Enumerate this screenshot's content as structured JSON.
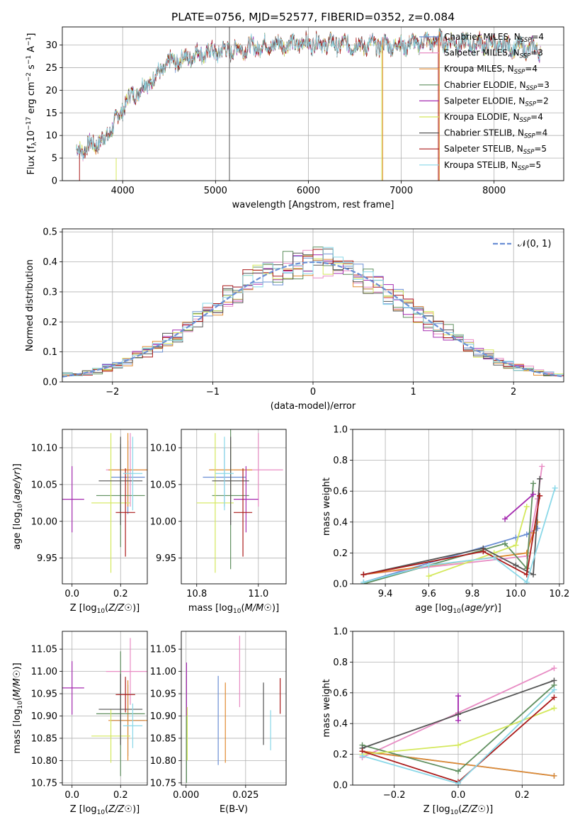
{
  "colors": {
    "Chabrier MILES": "#6b8fd4",
    "Salpeter MILES": "#e88cc4",
    "Kroupa MILES": "#e08a30",
    "Chabrier ELODIE": "#5f8f5f",
    "Salpeter ELODIE": "#a52bb0",
    "Kroupa ELODIE": "#d4e85c",
    "Chabrier STELIB": "#555555",
    "Salpeter STELIB": "#aa1a1a",
    "Kroupa STELIB": "#8ad8e8",
    "normal": "#6b8fd4"
  },
  "chart_data": [
    {
      "id": "spectrum",
      "type": "line",
      "title": "PLATE=0756, MJD=52577, FIBERID=0352, z=0.084",
      "xlabel": "wavelength [Angstrom, rest frame]",
      "ylabel_html": "Flux [f<tspan font-size='9' dy='3'>λ</tspan><tspan dy='-3'>10</tspan><tspan font-size='9' dy='-5'>−17</tspan><tspan dy='5'> erg cm</tspan><tspan font-size='9' dy='-5'>−2</tspan><tspan dy='5'> s</tspan><tspan font-size='9' dy='-5'>−1</tspan><tspan dy='5'> A</tspan><tspan font-size='9' dy='-5'>−1</tspan><tspan dy='5'>]</tspan>",
      "xlim": [
        3350,
        8750
      ],
      "ylim": [
        0,
        34
      ],
      "xticks": [
        4000,
        5000,
        6000,
        7000,
        8000
      ],
      "yticks": [
        0,
        5,
        10,
        15,
        20,
        25,
        30
      ],
      "legend_position": "top-right",
      "series": [
        {
          "name": "Chabrier MILES",
          "label": "Chabrier MILES, N_SSP=4"
        },
        {
          "name": "Salpeter MILES",
          "label": "Salpeter MILES, N_SSP=3"
        },
        {
          "name": "Kroupa MILES",
          "label": "Kroupa MILES, N_SSP=4"
        },
        {
          "name": "Chabrier ELODIE",
          "label": "Chabrier ELODIE, N_SSP=3"
        },
        {
          "name": "Salpeter ELODIE",
          "label": "Salpeter ELODIE, N_SSP=2"
        },
        {
          "name": "Kroupa ELODIE",
          "label": "Kroupa ELODIE, N_SSP=4"
        },
        {
          "name": "Chabrier STELIB",
          "label": "Chabrier STELIB, N_SSP=4"
        },
        {
          "name": "Salpeter STELIB",
          "label": "Salpeter STELIB, N_SSP=5"
        },
        {
          "name": "Kroupa STELIB",
          "label": "Kroupa STELIB, N_SSP=5"
        }
      ],
      "continuum": {
        "x": [
          3500,
          3800,
          3950,
          4050,
          4300,
          4500,
          4800,
          5200,
          5600,
          6000,
          6500,
          7000,
          7400,
          8000,
          8500
        ],
        "y": [
          6.5,
          9,
          14,
          18,
          22,
          26,
          28,
          29,
          30,
          30.5,
          30,
          30,
          31,
          30,
          29
        ]
      },
      "spikes": [
        {
          "x": 3535,
          "y0": 0,
          "y1": 6,
          "series": "Salpeter STELIB"
        },
        {
          "x": 3930,
          "y0": 0,
          "y1": 5,
          "series": "Kroupa ELODIE"
        },
        {
          "x": 5150,
          "y0": 0,
          "y1": 34,
          "series": "Chabrier STELIB"
        },
        {
          "x": 6790,
          "y0": 0,
          "y1": 30,
          "series": "Kroupa ELODIE"
        },
        {
          "x": 6800,
          "y0": 0,
          "y1": 31,
          "series": "Kroupa MILES"
        },
        {
          "x": 7400,
          "y0": 0,
          "y1": 32,
          "series": "Salpeter STELIB"
        },
        {
          "x": 7410,
          "y0": 0,
          "y1": 33,
          "series": "Kroupa MILES"
        }
      ]
    },
    {
      "id": "residuals",
      "type": "line",
      "xlabel": "(data-model)/error",
      "ylabel": "Normed distribution",
      "xlim": [
        -2.5,
        2.5
      ],
      "ylim": [
        0,
        0.51
      ],
      "xticks": [
        -2,
        -1,
        0,
        1,
        2
      ],
      "yticks": [
        0.0,
        0.1,
        0.2,
        0.3,
        0.4,
        0.5
      ],
      "legend": "𝒩(0, 1)",
      "legend_position": "top-right"
    },
    {
      "id": "age-Z",
      "type": "scatter",
      "xlabel": "Z [log₁₀(Z/Z☉)]",
      "ylabel": "age  [log₁₀(age/yr)]",
      "xlim": [
        -0.04,
        0.31
      ],
      "ylim": [
        9.915,
        10.125
      ],
      "xticks": [
        0.0,
        0.2
      ],
      "yticks": [
        9.95,
        10.0,
        10.05,
        10.1
      ],
      "points": [
        {
          "series": "Chabrier MILES",
          "x": 0.23,
          "y": 10.06,
          "xerr": 0.07,
          "yerr": 0.05
        },
        {
          "series": "Salpeter MILES",
          "x": 0.24,
          "y": 10.07,
          "xerr": 0.1,
          "yerr": 0.05
        },
        {
          "series": "Kroupa MILES",
          "x": 0.23,
          "y": 10.07,
          "xerr": 0.08,
          "yerr": 0.05
        },
        {
          "series": "Chabrier ELODIE",
          "x": 0.2,
          "y": 10.035,
          "xerr": 0.1,
          "yerr": 0.07
        },
        {
          "series": "Salpeter ELODIE",
          "x": 0.0,
          "y": 10.03,
          "xerr": 0.05,
          "yerr": 0.045
        },
        {
          "series": "Kroupa ELODIE",
          "x": 0.16,
          "y": 10.025,
          "xerr": 0.08,
          "yerr": 0.095
        },
        {
          "series": "Chabrier STELIB",
          "x": 0.2,
          "y": 10.055,
          "xerr": 0.09,
          "yerr": 0.06
        },
        {
          "series": "Salpeter STELIB",
          "x": 0.22,
          "y": 10.012,
          "xerr": 0.04,
          "yerr": 0.06
        },
        {
          "series": "Kroupa STELIB",
          "x": 0.25,
          "y": 10.065,
          "xerr": 0.04,
          "yerr": 0.05
        }
      ]
    },
    {
      "id": "age-mass",
      "type": "scatter",
      "xlabel": "mass [log₁₀(M/M☉)]",
      "ylabel": "",
      "xlim": [
        10.75,
        11.09
      ],
      "ylim": [
        9.915,
        10.125
      ],
      "xticks": [
        10.8,
        11.0
      ],
      "yticks": [
        9.95,
        10.0,
        10.05,
        10.1
      ],
      "points": [
        {
          "series": "Chabrier MILES",
          "x": 10.89,
          "y": 10.06,
          "xerr": 0.07,
          "yerr": 0.04
        },
        {
          "series": "Salpeter MILES",
          "x": 11.0,
          "y": 10.07,
          "xerr": 0.08,
          "yerr": 0.05
        },
        {
          "series": "Kroupa MILES",
          "x": 10.91,
          "y": 10.07,
          "xerr": 0.07,
          "yerr": 0.04
        },
        {
          "series": "Chabrier ELODIE",
          "x": 10.91,
          "y": 10.035,
          "xerr": 0.06,
          "yerr": 0.1
        },
        {
          "series": "Salpeter ELODIE",
          "x": 10.96,
          "y": 10.03,
          "xerr": 0.04,
          "yerr": 0.045
        },
        {
          "series": "Kroupa ELODIE",
          "x": 10.86,
          "y": 10.025,
          "xerr": 0.06,
          "yerr": 0.095
        },
        {
          "series": "Chabrier STELIB",
          "x": 10.91,
          "y": 10.055,
          "xerr": 0.06,
          "yerr": 0.06
        },
        {
          "series": "Salpeter STELIB",
          "x": 10.95,
          "y": 10.012,
          "xerr": 0.03,
          "yerr": 0.06
        },
        {
          "series": "Kroupa STELIB",
          "x": 10.89,
          "y": 10.065,
          "xerr": 0.03,
          "yerr": 0.05
        }
      ]
    },
    {
      "id": "weight-age",
      "type": "line",
      "xlabel": "age  [log₁₀(age/yr)]",
      "ylabel": "mass weight",
      "xlim": [
        9.25,
        10.22
      ],
      "ylim": [
        0,
        1
      ],
      "xticks": [
        9.4,
        9.6,
        9.8,
        10.0,
        10.2
      ],
      "yticks": [
        0.0,
        0.2,
        0.4,
        0.6,
        0.8,
        1.0
      ],
      "series": [
        {
          "name": "Chabrier MILES",
          "x": [
            9.3,
            10.0,
            10.05,
            10.1
          ],
          "y": [
            0.01,
            0.3,
            0.32,
            0.36
          ]
        },
        {
          "name": "Salpeter MILES",
          "x": [
            9.3,
            10.05,
            10.1,
            10.12
          ],
          "y": [
            0.06,
            0.18,
            0.55,
            0.76
          ]
        },
        {
          "name": "Kroupa MILES",
          "x": [
            9.3,
            10.05,
            10.08,
            10.1
          ],
          "y": [
            0.06,
            0.2,
            0.33,
            0.4
          ]
        },
        {
          "name": "Chabrier ELODIE",
          "x": [
            9.3,
            9.95,
            10.05,
            10.08
          ],
          "y": [
            0.0,
            0.26,
            0.1,
            0.65
          ]
        },
        {
          "name": "Salpeter ELODIE",
          "x": [
            9.95,
            10.08
          ],
          "y": [
            0.42,
            0.58
          ]
        },
        {
          "name": "Kroupa ELODIE",
          "x": [
            9.6,
            9.9,
            10.0,
            10.05
          ],
          "y": [
            0.05,
            0.2,
            0.25,
            0.5
          ]
        },
        {
          "name": "Chabrier STELIB",
          "x": [
            9.3,
            9.85,
            10.0,
            10.08,
            10.11
          ],
          "y": [
            0.06,
            0.23,
            0.12,
            0.06,
            0.68
          ]
        },
        {
          "name": "Salpeter STELIB",
          "x": [
            9.3,
            9.85,
            10.05,
            10.11
          ],
          "y": [
            0.06,
            0.21,
            0.06,
            0.57
          ]
        },
        {
          "name": "Kroupa STELIB",
          "x": [
            9.3,
            9.6,
            9.9,
            10.05,
            10.18
          ],
          "y": [
            0.01,
            0.12,
            0.17,
            0.01,
            0.62
          ]
        }
      ]
    },
    {
      "id": "mass-Z",
      "type": "scatter",
      "xlabel": "Z [log₁₀(Z/Z☉)]",
      "ylabel": "mass [log₁₀(M/M☉)]",
      "xlim": [
        -0.04,
        0.31
      ],
      "ylim": [
        10.745,
        11.09
      ],
      "xticks": [
        0.0,
        0.2
      ],
      "yticks": [
        10.75,
        10.8,
        10.85,
        10.9,
        10.95,
        11.0,
        11.05
      ],
      "points": [
        {
          "series": "Chabrier MILES",
          "x": 0.23,
          "y": 10.89,
          "xerr": 0.07,
          "yerr": 0.08
        },
        {
          "series": "Salpeter MILES",
          "x": 0.24,
          "y": 11.0,
          "xerr": 0.1,
          "yerr": 0.075
        },
        {
          "series": "Kroupa MILES",
          "x": 0.23,
          "y": 10.89,
          "xerr": 0.08,
          "yerr": 0.09
        },
        {
          "series": "Chabrier ELODIE",
          "x": 0.2,
          "y": 10.905,
          "xerr": 0.1,
          "yerr": 0.14
        },
        {
          "series": "Salpeter ELODIE",
          "x": 0.0,
          "y": 10.963,
          "xerr": 0.05,
          "yerr": 0.06
        },
        {
          "series": "Kroupa ELODIE",
          "x": 0.16,
          "y": 10.855,
          "xerr": 0.08,
          "yerr": 0.06
        },
        {
          "series": "Chabrier STELIB",
          "x": 0.2,
          "y": 10.915,
          "xerr": 0.09,
          "yerr": 0.08
        },
        {
          "series": "Salpeter STELIB",
          "x": 0.22,
          "y": 10.948,
          "xerr": 0.04,
          "yerr": 0.04
        },
        {
          "series": "Kroupa STELIB",
          "x": 0.25,
          "y": 10.878,
          "xerr": 0.04,
          "yerr": 0.05
        }
      ]
    },
    {
      "id": "mass-ebv",
      "type": "scatter",
      "xlabel": "E(B-V)",
      "ylabel": "",
      "xlim": [
        -0.002,
        0.042
      ],
      "ylim": [
        10.745,
        11.09
      ],
      "xticks": [
        0.0,
        0.025
      ],
      "yticks": [
        10.75,
        10.8,
        10.85,
        10.9,
        10.95,
        11.0,
        11.05
      ],
      "points": [
        {
          "series": "Chabrier MILES",
          "x": 0.0135,
          "y": 10.89,
          "xerr": 0.0,
          "yerr": 0.1
        },
        {
          "series": "Salpeter MILES",
          "x": 0.0225,
          "y": 11.0,
          "xerr": 0.0,
          "yerr": 0.08
        },
        {
          "series": "Kroupa MILES",
          "x": 0.0165,
          "y": 10.885,
          "xerr": 0.0,
          "yerr": 0.09
        },
        {
          "series": "Chabrier ELODIE",
          "x": 0.0002,
          "y": 10.87,
          "xerr": 0.0,
          "yerr": 0.12
        },
        {
          "series": "Salpeter ELODIE",
          "x": 0.0002,
          "y": 10.96,
          "xerr": 0.0,
          "yerr": 0.06
        },
        {
          "series": "Kroupa ELODIE",
          "x": 0.0005,
          "y": 10.86,
          "xerr": 0.0,
          "yerr": 0.06
        },
        {
          "series": "Chabrier STELIB",
          "x": 0.0325,
          "y": 10.905,
          "xerr": 0.0,
          "yerr": 0.07
        },
        {
          "series": "Salpeter STELIB",
          "x": 0.0395,
          "y": 10.945,
          "xerr": 0.0,
          "yerr": 0.04
        },
        {
          "series": "Kroupa STELIB",
          "x": 0.0355,
          "y": 10.868,
          "xerr": 0.0,
          "yerr": 0.045
        }
      ]
    },
    {
      "id": "weight-Z",
      "type": "line",
      "xlabel": "Z [log₁₀(Z/Z☉)]",
      "ylabel": "mass weight",
      "xlim": [
        -0.33,
        0.33
      ],
      "ylim": [
        0,
        1
      ],
      "xticks": [
        -0.2,
        0.0,
        0.2
      ],
      "yticks": [
        0.0,
        0.2,
        0.4,
        0.6,
        0.8,
        1.0
      ],
      "series": [
        {
          "name": "Chabrier MILES",
          "x": [
            -0.3,
            0.3
          ],
          "y": [
            0.22,
            0.06
          ]
        },
        {
          "name": "Salpeter MILES",
          "x": [
            -0.3,
            0.0,
            0.3
          ],
          "y": [
            0.18,
            0.47,
            0.76
          ]
        },
        {
          "name": "Kroupa MILES",
          "x": [
            -0.3,
            0.3
          ],
          "y": [
            0.22,
            0.06
          ]
        },
        {
          "name": "Chabrier ELODIE",
          "x": [
            -0.3,
            0.0,
            0.3
          ],
          "y": [
            0.26,
            0.09,
            0.65
          ]
        },
        {
          "name": "Salpeter ELODIE",
          "x": [
            0.0,
            0.0
          ],
          "y": [
            0.42,
            0.58
          ]
        },
        {
          "name": "Kroupa ELODIE",
          "x": [
            -0.3,
            0.0,
            0.3
          ],
          "y": [
            0.2,
            0.26,
            0.5
          ]
        },
        {
          "name": "Chabrier STELIB",
          "x": [
            -0.3,
            0.0,
            0.3
          ],
          "y": [
            0.24,
            0.46,
            0.68
          ]
        },
        {
          "name": "Salpeter STELIB",
          "x": [
            -0.3,
            0.0,
            0.3
          ],
          "y": [
            0.22,
            0.02,
            0.57
          ]
        },
        {
          "name": "Kroupa STELIB",
          "x": [
            -0.3,
            0.0,
            0.3
          ],
          "y": [
            0.19,
            0.01,
            0.62
          ]
        }
      ]
    }
  ]
}
